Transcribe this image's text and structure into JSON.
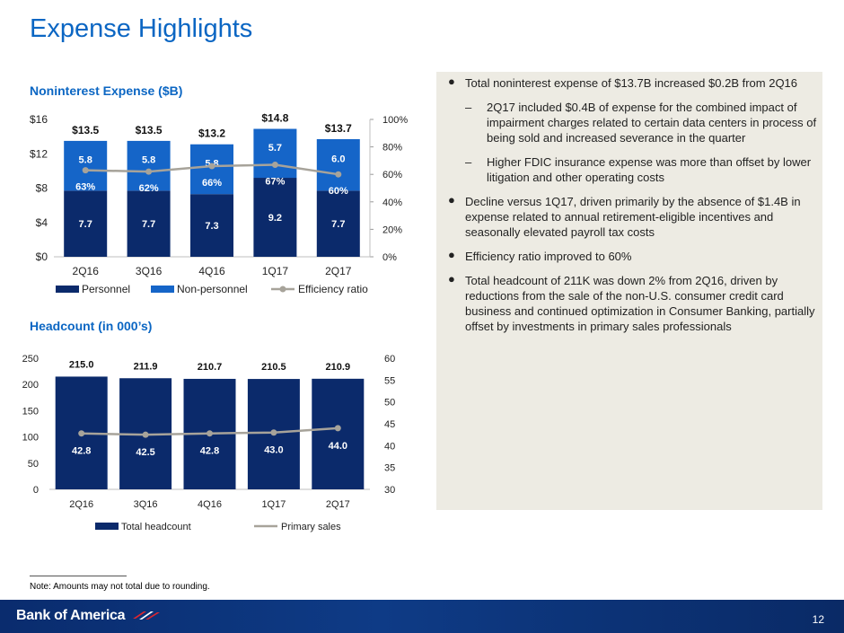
{
  "page": {
    "title": "Expense Highlights",
    "page_number": "12",
    "note": "Note: Amounts may not total due to rounding.",
    "logo": "Bank of America"
  },
  "bullets": [
    {
      "level": 1,
      "text": "Total noninterest expense of $13.7B increased $0.2B from 2Q16"
    },
    {
      "level": 2,
      "text": "2Q17 included $0.4B of expense for the combined impact of impairment charges related to certain data centers in process of being sold and increased severance in the quarter"
    },
    {
      "level": 2,
      "text": "Higher FDIC insurance expense was more than offset by lower litigation and other operating costs"
    },
    {
      "level": 1,
      "text": "Decline versus 1Q17, driven primarily by the absence of $1.4B in expense related to annual retirement-eligible incentives and seasonally elevated payroll tax costs"
    },
    {
      "level": 1,
      "text": "Efficiency ratio improved to 60%"
    },
    {
      "level": 1,
      "text": "Total headcount of 211K was down 2% from 2Q16, driven by reductions from the sale of the non-U.S. consumer credit card business and continued optimization in Consumer Banking, partially offset by investments in primary sales professionals"
    }
  ],
  "colors": {
    "personnel": "#0b2a6b",
    "nonpersonnel": "#1565c8",
    "line": "#a7a39a",
    "title": "#0b66c3"
  },
  "chart_data": [
    {
      "type": "bar",
      "title": "Noninterest Expense ($B)",
      "stacked": true,
      "categories": [
        "2Q16",
        "3Q16",
        "4Q16",
        "1Q17",
        "2Q17"
      ],
      "series": [
        {
          "name": "Personnel",
          "values": [
            7.7,
            7.7,
            7.3,
            9.2,
            7.7
          ],
          "labels": [
            "7.7",
            "7.7",
            "7.3",
            "9.2",
            "7.7"
          ]
        },
        {
          "name": "Non-personnel",
          "values": [
            5.8,
            5.8,
            5.8,
            5.7,
            6.0
          ],
          "labels": [
            "5.8",
            "5.8",
            "5.8",
            "5.7",
            "6.0"
          ]
        }
      ],
      "line_series": {
        "name": "Efficiency ratio",
        "axis": "right",
        "values": [
          63,
          62,
          66,
          67,
          60
        ],
        "labels": [
          "63%",
          "62%",
          "66%",
          "67%",
          "60%"
        ]
      },
      "totals": [
        "$13.5",
        "$13.5",
        "$13.2",
        "$14.8",
        "$13.7"
      ],
      "ylim": [
        0,
        16
      ],
      "yticks": [
        "$0",
        "$4",
        "$8",
        "$12",
        "$16"
      ],
      "y2lim": [
        0,
        100
      ],
      "y2ticks": [
        "0%",
        "20%",
        "40%",
        "60%",
        "80%",
        "100%"
      ],
      "legend": [
        "Personnel",
        "Non-personnel",
        "Efficiency ratio"
      ]
    },
    {
      "type": "bar",
      "title": "Headcount (in 000’s)",
      "categories": [
        "2Q16",
        "3Q16",
        "4Q16",
        "1Q17",
        "2Q17"
      ],
      "series": [
        {
          "name": "Total headcount",
          "values": [
            215.0,
            211.9,
            210.7,
            210.5,
            210.9
          ],
          "labels": [
            "215.0",
            "211.9",
            "210.7",
            "210.5",
            "210.9"
          ]
        }
      ],
      "line_series": {
        "name": "Primary sales",
        "axis": "right",
        "values": [
          42.8,
          42.5,
          42.8,
          43.0,
          44.0
        ],
        "labels": [
          "42.8",
          "42.5",
          "42.8",
          "43.0",
          "44.0"
        ]
      },
      "ylim": [
        0,
        250
      ],
      "yticks": [
        "0",
        "50",
        "100",
        "150",
        "200",
        "250"
      ],
      "y2lim": [
        30,
        60
      ],
      "y2ticks": [
        "30",
        "35",
        "40",
        "45",
        "50",
        "55",
        "60"
      ],
      "legend": [
        "Total headcount",
        "Primary sales"
      ]
    }
  ]
}
